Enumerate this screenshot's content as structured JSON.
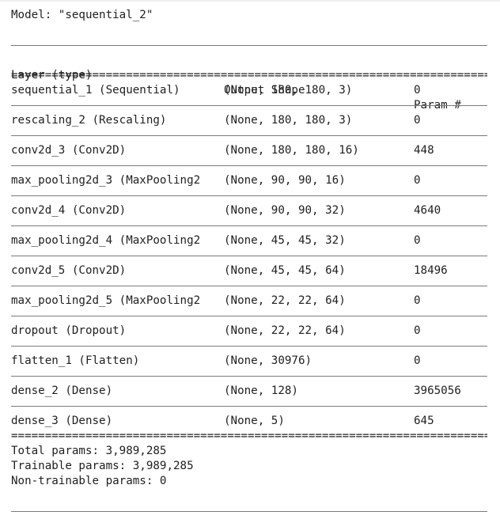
{
  "model_title": "Model: \"sequential_2\"",
  "header": {
    "col_layer": "Layer (type)",
    "col_shape": "Output Shape",
    "col_params": "Param #"
  },
  "separator": "===========================================================================",
  "layers": [
    {
      "name": "sequential_1 (Sequential)",
      "shape": "(None, 180, 180, 3)",
      "params": "0"
    },
    {
      "name": "rescaling_2 (Rescaling)",
      "shape": "(None, 180, 180, 3)",
      "params": "0"
    },
    {
      "name": "conv2d_3 (Conv2D)",
      "shape": "(None, 180, 180, 16)",
      "params": "448"
    },
    {
      "name": "max_pooling2d_3 (MaxPooling2",
      "shape": "(None, 90, 90, 16)",
      "params": "0"
    },
    {
      "name": "conv2d_4 (Conv2D)",
      "shape": "(None, 90, 90, 32)",
      "params": "4640"
    },
    {
      "name": "max_pooling2d_4 (MaxPooling2",
      "shape": "(None, 45, 45, 32)",
      "params": "0"
    },
    {
      "name": "conv2d_5 (Conv2D)",
      "shape": "(None, 45, 45, 64)",
      "params": "18496"
    },
    {
      "name": "max_pooling2d_5 (MaxPooling2",
      "shape": "(None, 22, 22, 64)",
      "params": "0"
    },
    {
      "name": "dropout (Dropout)",
      "shape": "(None, 22, 22, 64)",
      "params": "0"
    },
    {
      "name": "flatten_1 (Flatten)",
      "shape": "(None, 30976)",
      "params": "0"
    },
    {
      "name": "dense_2 (Dense)",
      "shape": "(None, 128)",
      "params": "3965056"
    },
    {
      "name": "dense_3 (Dense)",
      "shape": "(None, 5)",
      "params": "645"
    }
  ],
  "summary": {
    "total": "Total params: 3,989,285",
    "trainable": "Trainable params: 3,989,285",
    "non_trainable": "Non-trainable params: 0"
  },
  "colors": {
    "text": "#212121",
    "rule": "#7a7a7a",
    "background": "#ffffff"
  }
}
